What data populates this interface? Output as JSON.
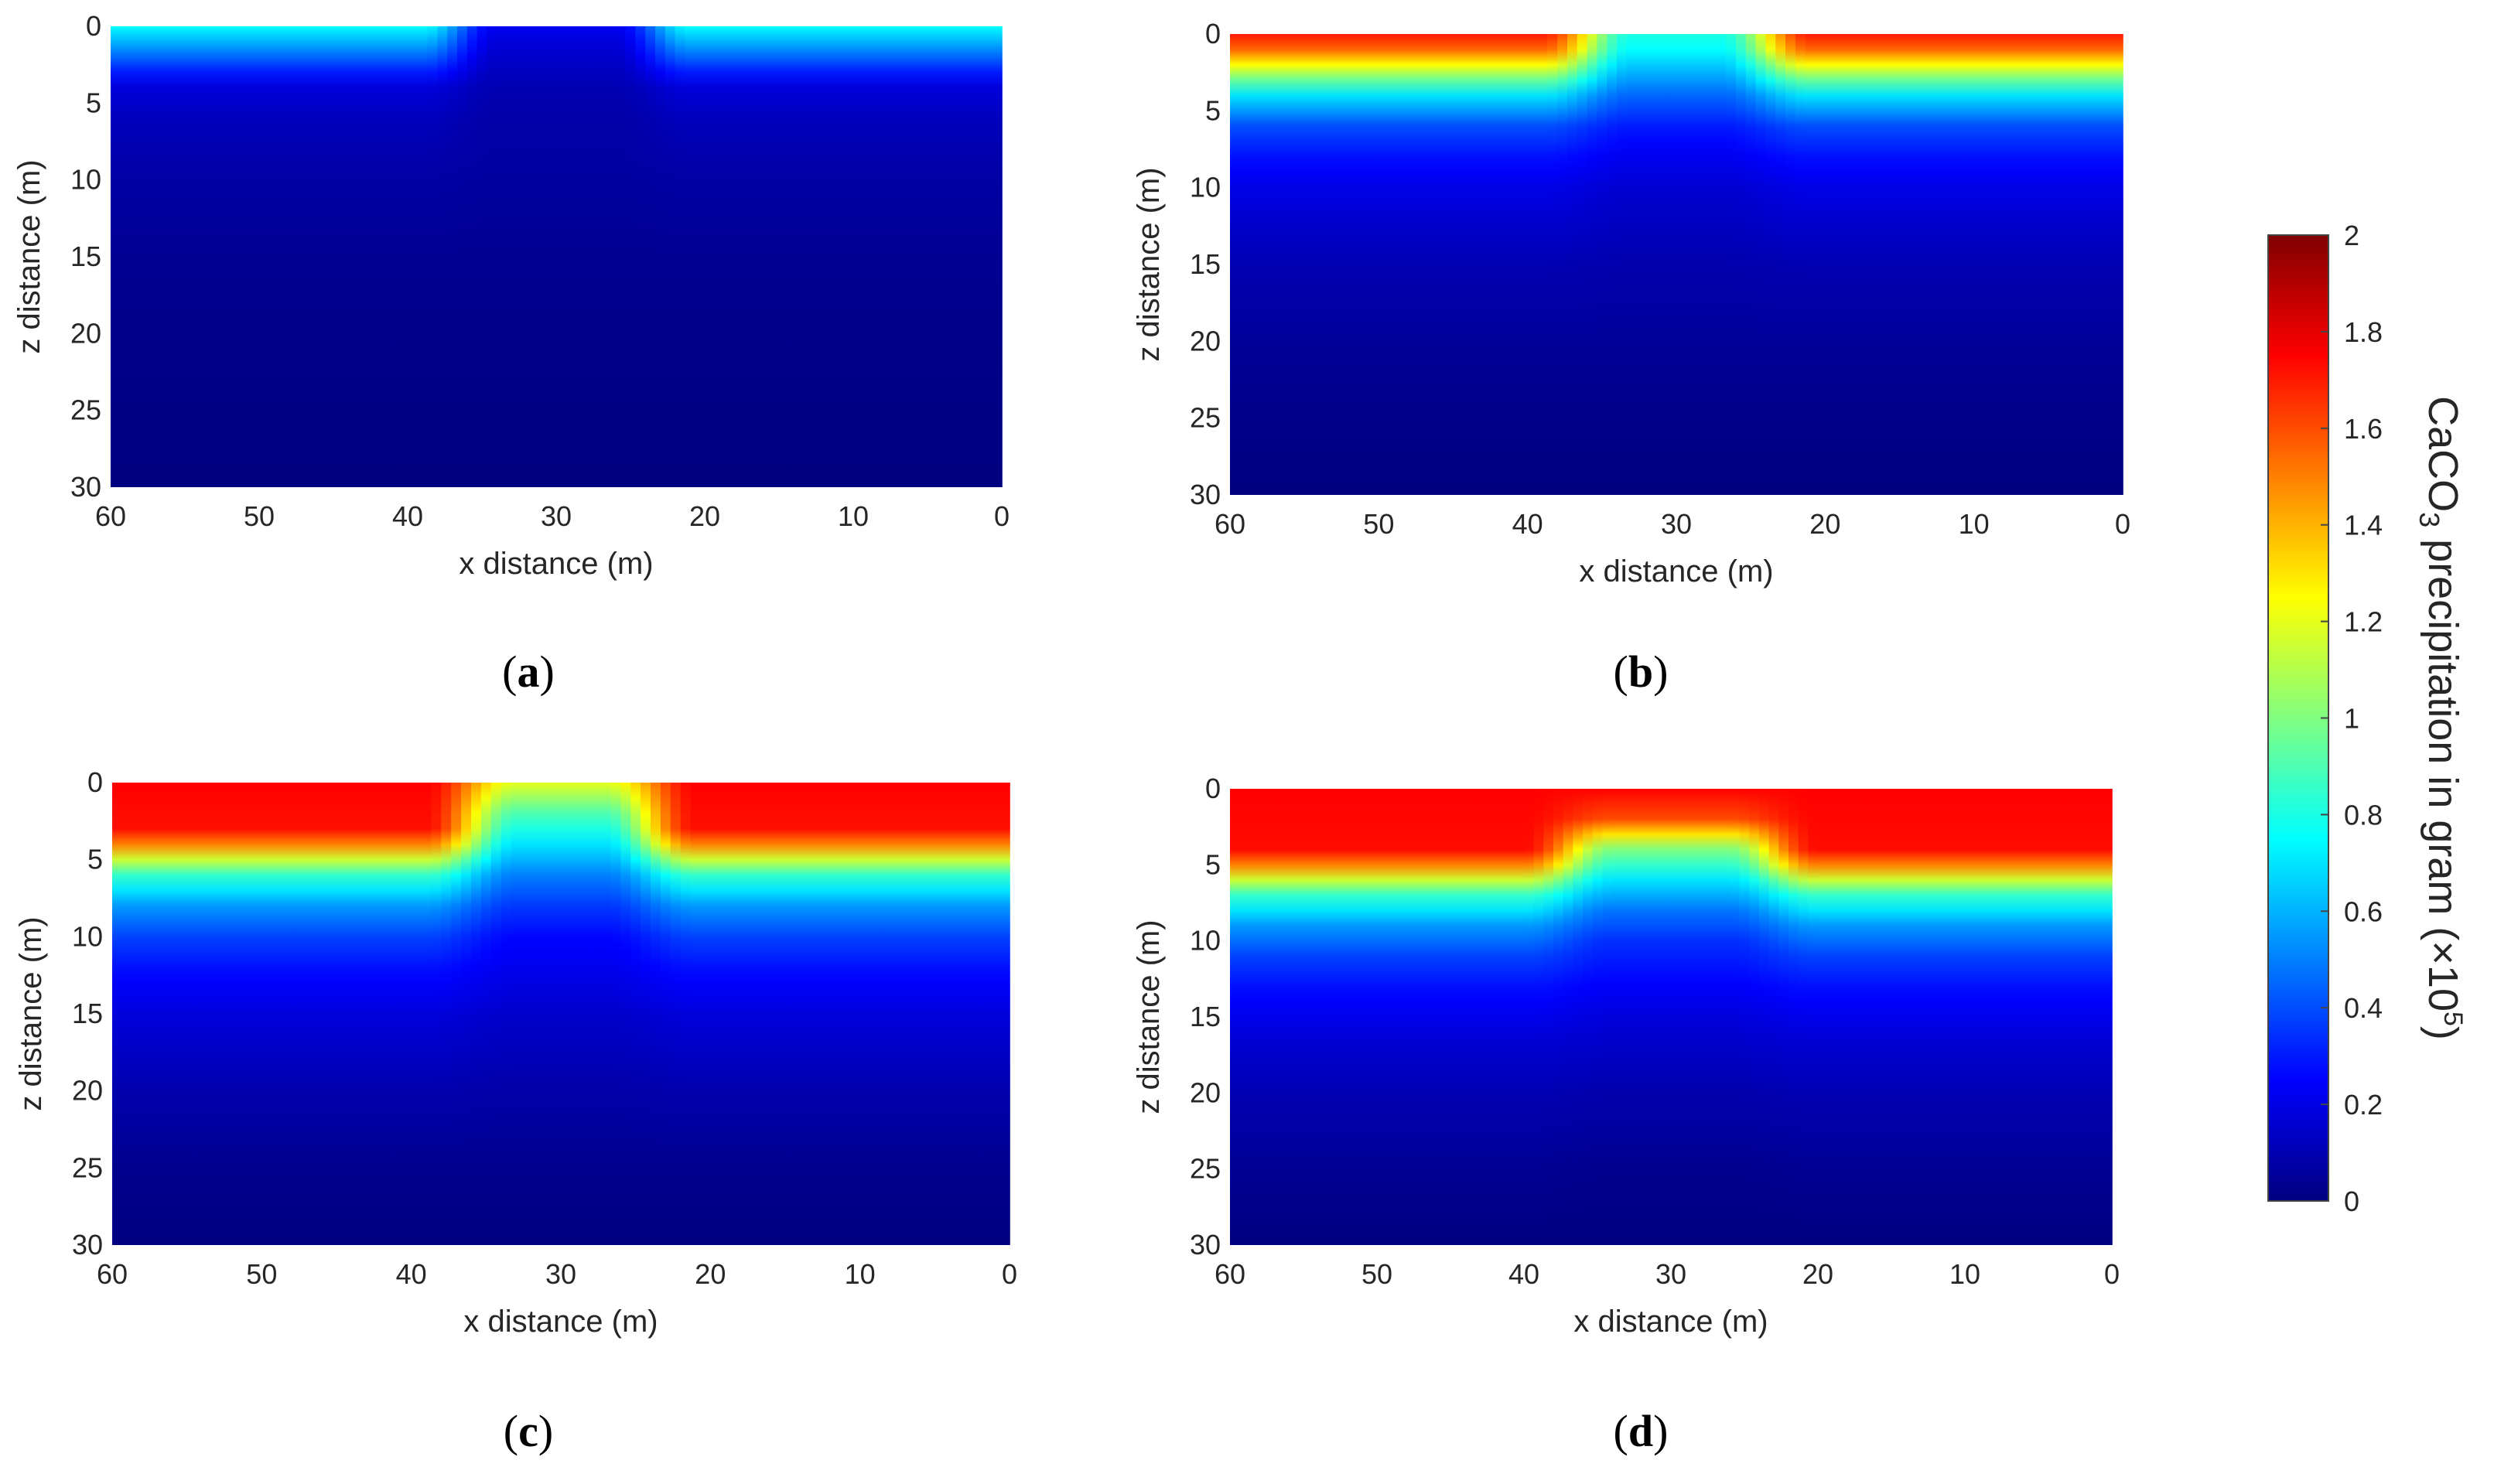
{
  "chart_data": [
    {
      "panel": "(a)",
      "panel_letter": "a",
      "type": "heatmap",
      "xlabel": "x distance (m)",
      "ylabel": "z distance (m)",
      "xlim": [
        60,
        0
      ],
      "ylim": [
        30,
        0
      ],
      "xticks": [
        60,
        50,
        40,
        30,
        20,
        10,
        0
      ],
      "yticks": [
        0,
        5,
        10,
        15,
        20,
        25,
        30
      ],
      "colormap": "jet",
      "surface_value": 0.75,
      "ramp_center_x": 30,
      "ramp_plateau_half_width": 4,
      "ramp_half_width": 9,
      "z_profile": [
        [
          0,
          0.75
        ],
        [
          1,
          0.6
        ],
        [
          2,
          0.45
        ],
        [
          3,
          0.3
        ],
        [
          4,
          0.18
        ],
        [
          6,
          0.12
        ],
        [
          10,
          0.07
        ],
        [
          15,
          0.04
        ],
        [
          20,
          0.02
        ],
        [
          30,
          0.0
        ]
      ],
      "z_profile_center": [
        [
          0,
          0.22
        ],
        [
          1,
          0.18
        ],
        [
          2,
          0.15
        ],
        [
          4,
          0.1
        ],
        [
          6,
          0.08
        ],
        [
          10,
          0.06
        ],
        [
          15,
          0.04
        ],
        [
          20,
          0.02
        ],
        [
          30,
          0.0
        ]
      ]
    },
    {
      "panel": "(b)",
      "panel_letter": "b",
      "type": "heatmap",
      "xlabel": "x distance (m)",
      "ylabel": "z distance (m)",
      "xlim": [
        60,
        0
      ],
      "ylim": [
        30,
        0
      ],
      "xticks": [
        60,
        50,
        40,
        30,
        20,
        10,
        0
      ],
      "yticks": [
        0,
        5,
        10,
        15,
        20,
        25,
        30
      ],
      "colormap": "jet",
      "surface_value": 1.7,
      "ramp_center_x": 30,
      "ramp_plateau_half_width": 3,
      "ramp_half_width": 9,
      "z_profile": [
        [
          0,
          1.7
        ],
        [
          1,
          1.55
        ],
        [
          2,
          1.25
        ],
        [
          3,
          0.95
        ],
        [
          4,
          0.7
        ],
        [
          6,
          0.4
        ],
        [
          8,
          0.28
        ],
        [
          10,
          0.2
        ],
        [
          15,
          0.1
        ],
        [
          20,
          0.05
        ],
        [
          25,
          0.02
        ],
        [
          30,
          0.0
        ]
      ],
      "z_profile_center": [
        [
          0,
          0.8
        ],
        [
          1,
          0.75
        ],
        [
          2,
          0.65
        ],
        [
          4,
          0.45
        ],
        [
          6,
          0.3
        ],
        [
          8,
          0.22
        ],
        [
          10,
          0.16
        ],
        [
          15,
          0.09
        ],
        [
          20,
          0.05
        ],
        [
          25,
          0.02
        ],
        [
          30,
          0.0
        ]
      ]
    },
    {
      "panel": "(c)",
      "panel_letter": "c",
      "type": "heatmap",
      "xlabel": "x distance (m)",
      "ylabel": "z distance (m)",
      "xlim": [
        60,
        0
      ],
      "ylim": [
        30,
        0
      ],
      "xticks": [
        60,
        50,
        40,
        30,
        20,
        10,
        0
      ],
      "yticks": [
        0,
        5,
        10,
        15,
        20,
        25,
        30
      ],
      "colormap": "jet",
      "surface_value": 1.75,
      "ramp_center_x": 30,
      "ramp_plateau_half_width": 3,
      "ramp_half_width": 9,
      "z_profile": [
        [
          0,
          1.75
        ],
        [
          3,
          1.72
        ],
        [
          4,
          1.5
        ],
        [
          5,
          1.15
        ],
        [
          6,
          0.85
        ],
        [
          8,
          0.55
        ],
        [
          10,
          0.38
        ],
        [
          12,
          0.28
        ],
        [
          15,
          0.18
        ],
        [
          20,
          0.09
        ],
        [
          25,
          0.03
        ],
        [
          30,
          0.0
        ]
      ],
      "z_profile_center": [
        [
          0,
          1.2
        ],
        [
          1,
          1.05
        ],
        [
          2,
          0.9
        ],
        [
          4,
          0.7
        ],
        [
          6,
          0.5
        ],
        [
          8,
          0.36
        ],
        [
          10,
          0.26
        ],
        [
          15,
          0.15
        ],
        [
          20,
          0.08
        ],
        [
          25,
          0.03
        ],
        [
          30,
          0.0
        ]
      ]
    },
    {
      "panel": "(d)",
      "panel_letter": "d",
      "type": "heatmap",
      "xlabel": "x distance (m)",
      "ylabel": "z distance (m)",
      "xlim": [
        60,
        0
      ],
      "ylim": [
        30,
        0
      ],
      "xticks": [
        60,
        50,
        40,
        30,
        20,
        10,
        0
      ],
      "yticks": [
        0,
        5,
        10,
        15,
        20,
        25,
        30
      ],
      "colormap": "jet",
      "surface_value": 1.75,
      "ramp_center_x": 30,
      "ramp_plateau_half_width": 4,
      "ramp_half_width": 10,
      "z_profile": [
        [
          0,
          1.75
        ],
        [
          4,
          1.73
        ],
        [
          5,
          1.5
        ],
        [
          6,
          1.15
        ],
        [
          7,
          0.85
        ],
        [
          9,
          0.55
        ],
        [
          11,
          0.38
        ],
        [
          13,
          0.28
        ],
        [
          16,
          0.18
        ],
        [
          20,
          0.1
        ],
        [
          25,
          0.04
        ],
        [
          30,
          0.0
        ]
      ],
      "z_profile_center": [
        [
          0,
          1.75
        ],
        [
          2,
          1.6
        ],
        [
          3,
          1.3
        ],
        [
          4,
          1.0
        ],
        [
          6,
          0.7
        ],
        [
          8,
          0.48
        ],
        [
          10,
          0.34
        ],
        [
          15,
          0.18
        ],
        [
          20,
          0.09
        ],
        [
          25,
          0.03
        ],
        [
          30,
          0.0
        ]
      ]
    }
  ],
  "colorbar": {
    "label_prefix": "CaCO",
    "label_subscript": "3",
    "label_suffix": " precipitation in gram (×10",
    "label_superscript": "5",
    "label_close": ")",
    "min": 0,
    "max": 2,
    "ticks": [
      2,
      1.8,
      1.6,
      1.4,
      1.2,
      1,
      0.8,
      0.6,
      0.4,
      0.2,
      0
    ],
    "colormap": "jet"
  }
}
